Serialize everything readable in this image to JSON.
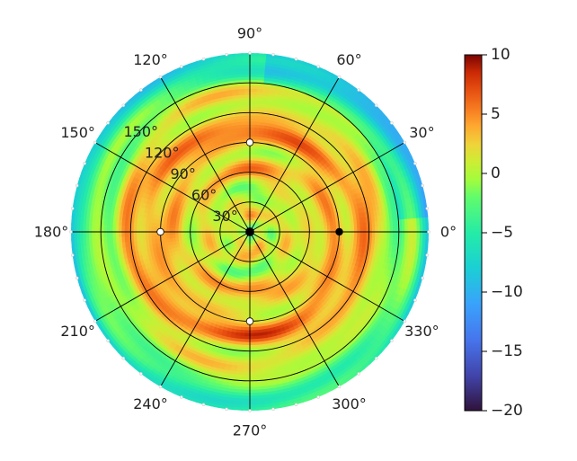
{
  "chart_data": {
    "type": "heatmap",
    "projection": "polar",
    "title": "",
    "colormap": "turbo",
    "colorbar": {
      "min": -20,
      "max": 10,
      "ticks": [
        10,
        5,
        0,
        -5,
        -10,
        -15,
        -20
      ],
      "tick_labels": [
        "10",
        "5",
        "0",
        "−5",
        "−10",
        "−15",
        "−20"
      ],
      "placement": "right"
    },
    "angular_axis": {
      "ticks_deg": [
        0,
        30,
        60,
        90,
        120,
        150,
        180,
        210,
        240,
        270,
        300,
        330
      ],
      "tick_labels": [
        "0°",
        "30°",
        "60°",
        "90°",
        "120°",
        "150°",
        "180°",
        "210°",
        "240°",
        "270°",
        "300°",
        "330°"
      ]
    },
    "radial_axis": {
      "range": [
        0,
        180
      ],
      "ticks": [
        30,
        60,
        90,
        120,
        150
      ],
      "tick_labels": [
        "30°",
        "60°",
        "90°",
        "120°",
        "150°"
      ],
      "label_angle_deg": 135
    },
    "grid": true,
    "field": {
      "description_rings": [
        {
          "r": 0,
          "value": -3
        },
        {
          "r": 15,
          "value": 2
        },
        {
          "r": 30,
          "value": 1
        },
        {
          "r": 45,
          "value": 0
        },
        {
          "r": 60,
          "value": 3
        },
        {
          "r": 75,
          "value": 2
        },
        {
          "r": 90,
          "value": 3
        },
        {
          "r": 105,
          "value": 5
        },
        {
          "r": 120,
          "value": 3
        },
        {
          "r": 135,
          "value": 1
        },
        {
          "r": 150,
          "value": -1
        },
        {
          "r": 165,
          "value": -3
        },
        {
          "r": 180,
          "value": -6
        }
      ]
    },
    "markers": [
      {
        "angle_deg": 90,
        "r": 90,
        "color": "#ffffff"
      },
      {
        "angle_deg": 270,
        "r": 90,
        "color": "#ffffff"
      },
      {
        "angle_deg": 180,
        "r": 90,
        "color": "#ffffff"
      },
      {
        "angle_deg": 0,
        "r": 90,
        "color": "#000000"
      },
      {
        "angle_deg": 0,
        "r": 0,
        "color": "#000000"
      }
    ]
  }
}
